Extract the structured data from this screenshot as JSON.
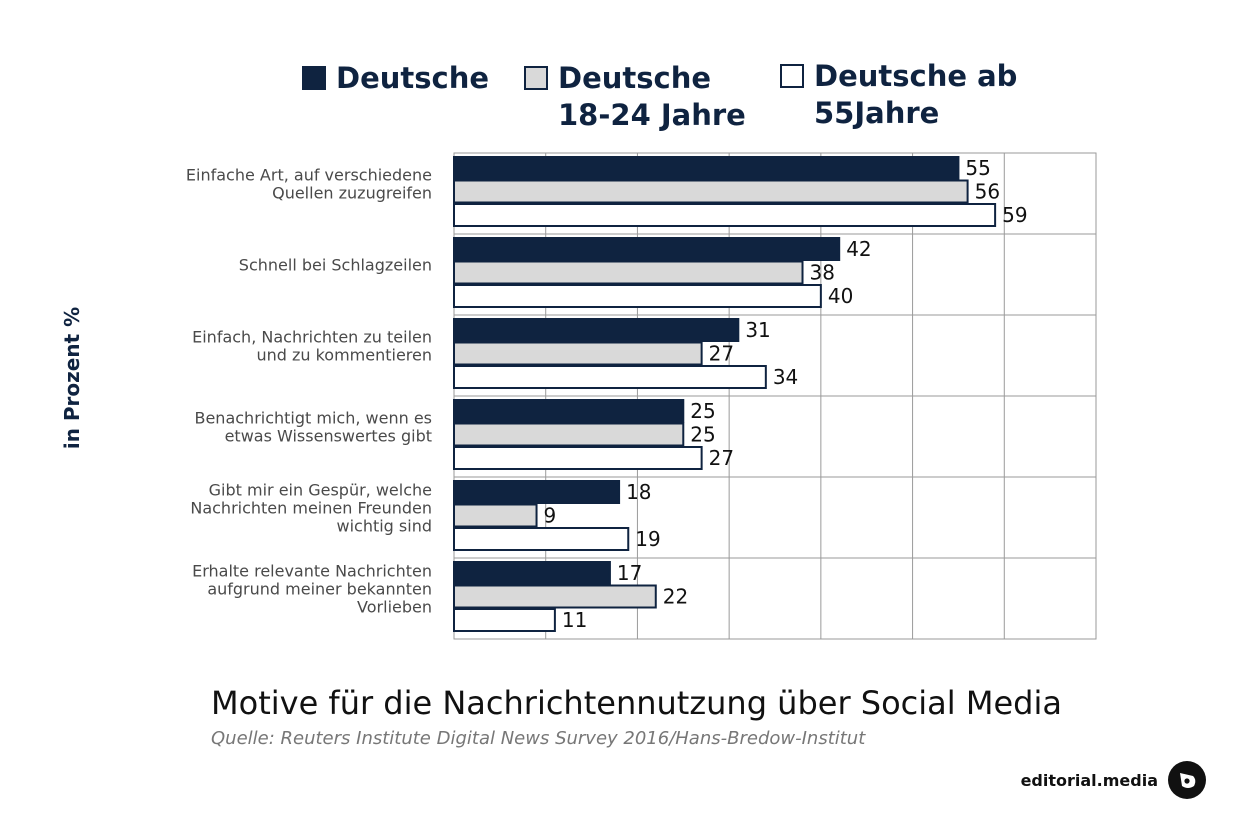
{
  "legend": [
    {
      "label": "Deutsche",
      "color": "#0f2340"
    },
    {
      "label": "Deutsche\n18-24 Jahre",
      "color": "#d9d9d9"
    },
    {
      "label": "Deutsche ab\n55Jahre",
      "color": "#ffffff"
    }
  ],
  "ylabel": "in Prozent %",
  "title": "Motive für die Nachrichtennutzung über Social Media",
  "source": "Quelle: Reuters Institute Digital News Survey 2016/Hans-Bredow-Institut",
  "brand": {
    "name": "editorial.media",
    "icon": "editorial-media-logo-icon"
  },
  "chart_data": {
    "type": "bar",
    "orientation": "horizontal",
    "categories": [
      "Einfache Art, auf verschiedene\nQuellen zuzugreifen",
      "Schnell bei Schlagzeilen",
      "Einfach, Nachrichten zu teilen\nund zu kommentieren",
      "Benachrichtigt mich, wenn es\netwas Wissenswertes gibt",
      "Gibt mir ein Gespür, welche\nNachrichten meinen Freunden\nwichtig sind",
      "Erhalte relevante Nachrichten\naufgrund meiner bekannten\nVorlieben"
    ],
    "series": [
      {
        "name": "Deutsche",
        "color": "#0f2340",
        "values": [
          55,
          42,
          31,
          25,
          18,
          17
        ]
      },
      {
        "name": "Deutsche 18-24 Jahre",
        "color": "#d9d9d9",
        "values": [
          56,
          38,
          27,
          25,
          9,
          22
        ]
      },
      {
        "name": "Deutsche ab 55Jahre",
        "color": "#ffffff",
        "values": [
          59,
          40,
          34,
          27,
          19,
          11
        ]
      }
    ],
    "ylabel": "in Prozent %",
    "xlim": [
      0,
      70
    ],
    "grid": true,
    "data_labels": true,
    "legend_position": "top"
  }
}
